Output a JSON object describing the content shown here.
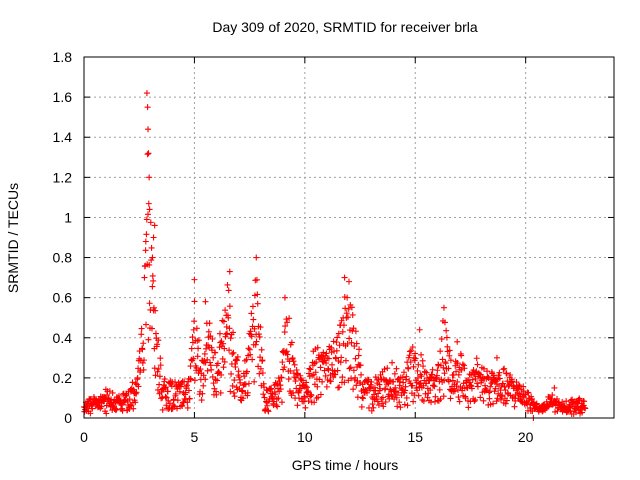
{
  "chart_data": {
    "type": "scatter",
    "title": "Day 309 of 2020, SRMTID for receiver brla",
    "xlabel": "GPS time / hours",
    "ylabel": "SRMTID / TECUs",
    "xlim": [
      0,
      24
    ],
    "ylim": [
      0,
      1.8
    ],
    "xticks": [
      "0",
      "5",
      "10",
      "15",
      "20"
    ],
    "yticks": [
      "0",
      "0.2",
      "0.4",
      "0.6",
      "0.8",
      "1",
      "1.2",
      "1.4",
      "1.6",
      "1.8"
    ],
    "grid": true,
    "marker": "plus",
    "color": "#ff0000",
    "series": [
      {
        "name": "SRMTID",
        "envelope": [
          [
            0.0,
            0.06
          ],
          [
            0.3,
            0.1
          ],
          [
            0.6,
            0.09
          ],
          [
            1.0,
            0.14
          ],
          [
            1.5,
            0.12
          ],
          [
            2.0,
            0.12
          ],
          [
            2.4,
            0.22
          ],
          [
            2.7,
            0.55
          ],
          [
            2.9,
            1.45
          ],
          [
            3.1,
            0.75
          ],
          [
            3.3,
            0.45
          ],
          [
            3.6,
            0.2
          ],
          [
            4.2,
            0.17
          ],
          [
            4.8,
            0.22
          ],
          [
            5.0,
            0.65
          ],
          [
            5.3,
            0.3
          ],
          [
            5.6,
            0.5
          ],
          [
            6.0,
            0.32
          ],
          [
            6.5,
            0.7
          ],
          [
            6.8,
            0.4
          ],
          [
            7.2,
            0.22
          ],
          [
            7.8,
            0.72
          ],
          [
            8.2,
            0.15
          ],
          [
            8.8,
            0.18
          ],
          [
            9.2,
            0.56
          ],
          [
            9.6,
            0.25
          ],
          [
            10.0,
            0.18
          ],
          [
            10.5,
            0.38
          ],
          [
            11.0,
            0.32
          ],
          [
            11.5,
            0.45
          ],
          [
            11.8,
            0.68
          ],
          [
            12.2,
            0.55
          ],
          [
            12.6,
            0.22
          ],
          [
            13.0,
            0.18
          ],
          [
            13.5,
            0.22
          ],
          [
            14.0,
            0.28
          ],
          [
            14.4,
            0.2
          ],
          [
            14.7,
            0.32
          ],
          [
            15.1,
            0.44
          ],
          [
            15.5,
            0.22
          ],
          [
            16.0,
            0.26
          ],
          [
            16.3,
            0.52
          ],
          [
            16.7,
            0.28
          ],
          [
            17.0,
            0.35
          ],
          [
            17.4,
            0.2
          ],
          [
            17.8,
            0.3
          ],
          [
            18.2,
            0.25
          ],
          [
            18.6,
            0.22
          ],
          [
            19.0,
            0.24
          ],
          [
            19.5,
            0.2
          ],
          [
            19.9,
            0.18
          ],
          [
            20.2,
            0.12
          ],
          [
            20.4,
            0.08
          ],
          [
            20.8,
            0.06
          ],
          [
            21.2,
            0.12
          ],
          [
            21.6,
            0.07
          ],
          [
            22.0,
            0.08
          ],
          [
            22.3,
            0.1
          ],
          [
            22.7,
            0.07
          ]
        ],
        "peaks": [
          [
            2.85,
            1.62
          ],
          [
            2.88,
            1.55
          ],
          [
            2.9,
            1.44
          ],
          [
            2.92,
            1.32
          ],
          [
            2.95,
            1.2
          ],
          [
            2.97,
            1.04
          ],
          [
            3.2,
            0.96
          ],
          [
            3.15,
            0.9
          ],
          [
            3.1,
            0.8
          ],
          [
            2.8,
            0.88
          ],
          [
            5.0,
            0.69
          ],
          [
            5.5,
            0.58
          ],
          [
            6.6,
            0.73
          ],
          [
            7.8,
            0.8
          ],
          [
            9.1,
            0.6
          ],
          [
            11.8,
            0.7
          ],
          [
            12.0,
            0.68
          ],
          [
            15.2,
            0.44
          ],
          [
            16.3,
            0.55
          ],
          [
            16.9,
            0.38
          ],
          [
            18.7,
            0.3
          ],
          [
            20.35,
            0.0
          ],
          [
            21.3,
            0.15
          ]
        ]
      }
    ]
  }
}
